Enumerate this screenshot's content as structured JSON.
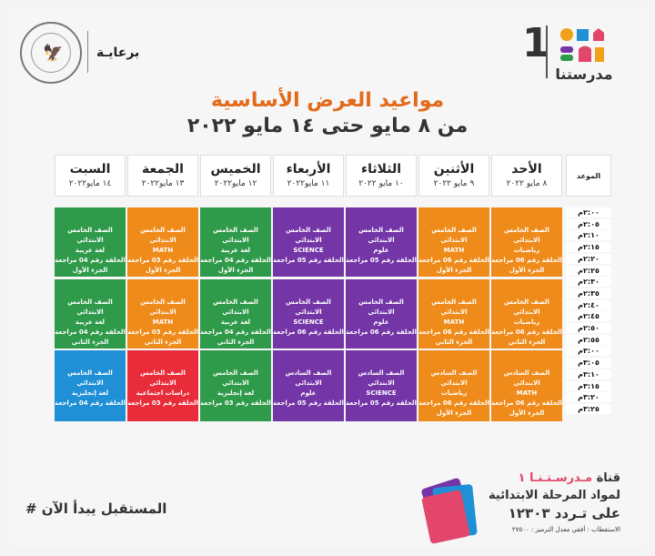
{
  "header": {
    "logo_number": "1",
    "logo_text": "مدرستنا",
    "sponsor_label": "برعايـة"
  },
  "title": {
    "line1": "مواعيد العرض الأساسية",
    "line2": "من ٨ مايو حتى ١٤ مايو ٢٠٢٢"
  },
  "schedule": {
    "time_header": "الموعد",
    "days": [
      {
        "name": "الأحد",
        "date": "٨ مايو ٢٠٢٢"
      },
      {
        "name": "الأثنين",
        "date": "٩ مايو ٢٠٢٢"
      },
      {
        "name": "الثلاثاء",
        "date": "١٠ مايو ٢٠٢٢"
      },
      {
        "name": "الأربعاء",
        "date": "١١ مايو٢٠٢٢"
      },
      {
        "name": "الخميس",
        "date": "١٢ مايو٢٠٢٢"
      },
      {
        "name": "الجمعة",
        "date": "١٣ مايو٢٠٢٢"
      },
      {
        "name": "السبت",
        "date": "١٤ مايو٢٠٢٢"
      }
    ],
    "times": [
      "٢:٠٠م",
      "٢:٠٥م",
      "٢:١٠م",
      "٢:١٥م",
      "٢:٢٠م",
      "٢:٢٥م",
      "٢:٣٠م",
      "٢:٣٥م",
      "٢:٤٠م",
      "٢:٤٥م",
      "٢:٥٠م",
      "٢:٥٥م",
      "٣:٠٠م",
      "٣:٠٥م",
      "٣:١٠م",
      "٣:١٥م",
      "٣:٢٠م",
      "٣:٢٥م"
    ],
    "blocks": [
      [
        [
          "الصف الخامس الابتدائي",
          "رياضيات",
          "الحلقة رقم 06 مراجعة",
          "الجزء الأول"
        ],
        [
          "الصف الخامس الابتدائي",
          "MATH",
          "الحلقة رقم 06 مراجعة",
          "الجزء الأول"
        ],
        [
          "الصف الخامس الابتدائي",
          "علوم",
          "الحلقة رقم 05 مراجعة"
        ],
        [
          "الصف الخامس الابتدائي",
          "SCIENCE",
          "الحلقة رقم 05 مراجعة"
        ],
        [
          "الصف الخامس الابتدائي",
          "لغة عربية",
          "الحلقة رقم 04 مراجعة",
          "الجزء الأول"
        ],
        [
          "الصف الخامس الابتدائي",
          "MATH",
          "الحلقة رقم 03 مراجعة",
          "الجزء الأول"
        ],
        [
          "الصف الخامس الابتدائي",
          "لغة عربية",
          "الحلقة رقم 04 مراجعة",
          "الجزء الأول"
        ]
      ],
      [
        [
          "الصف الخامس الابتدائي",
          "رياضيات",
          "الحلقة رقم 06 مراجعة",
          "الجزء الثاني"
        ],
        [
          "الصف الخامس الابتدائي",
          "MATH",
          "الحلقة رقم 06 مراجعة",
          "الجزء الثاني"
        ],
        [
          "الصف الخامس الابتدائي",
          "علوم",
          "الحلقة رقم 06 مراجعة"
        ],
        [
          "الصف الخامس الابتدائي",
          "SCIENCE",
          "الحلقة رقم 06 مراجعة"
        ],
        [
          "الصف الخامس الابتدائي",
          "لغة عربية",
          "الحلقة رقم 04 مراجعة",
          "الجزء الثاني"
        ],
        [
          "الصف الخامس الابتدائي",
          "MATH",
          "الحلقة رقم 03 مراجعة",
          "الجزء الثاني"
        ],
        [
          "الصف الخامس الابتدائي",
          "لغة عربية",
          "الحلقة رقم 04 مراجعة",
          "الجزء الثاني"
        ]
      ],
      [
        [
          "الصف السادس الابتدائي",
          "MATH",
          "الحلقة رقم 06 مراجعة",
          "الجزء الأول"
        ],
        [
          "الصف السادس الابتدائي",
          "رياضيات",
          "الحلقة رقم 06 مراجعة",
          "الجزء الأول"
        ],
        [
          "الصف السادس الابتدائي",
          "SCIENCE",
          "الحلقة رقم 05 مراجعة"
        ],
        [
          "الصف السادس الابتدائي",
          "علوم",
          "الحلقة رقم 05 مراجعة"
        ],
        [
          "الصف الخامس الابتدائي",
          "لغة إنجليزية",
          "الحلقة رقم 03 مراجعة"
        ],
        [
          "الصف الخامس الابتدائي",
          "دراسات اجتماعية",
          "الحلقة رقم 03 مراجعة"
        ],
        [
          "الصف الخامس الابتدائي",
          "لغة إنجليزية",
          "الحلقة رقم 04 مراجعة"
        ]
      ]
    ],
    "colors": {
      "green": "#2f9a4a",
      "orange": "#ef8b1a",
      "purple": "#7435a7",
      "blue": "#1f8fd6",
      "red": "#e92c3a"
    }
  },
  "footer": {
    "slogan": "# المستقبل يبدأ الآن",
    "channel_word": "قناة",
    "channel_name": "مـدرسـتـنـا ١",
    "channel_line2": "لمواد المرحلة الابتدائية",
    "frequency": "على تـردد ١٢٣٠٣",
    "details": "الاستقطاب : أفقي معدل الترميز : ٢٧٥٠٠"
  }
}
